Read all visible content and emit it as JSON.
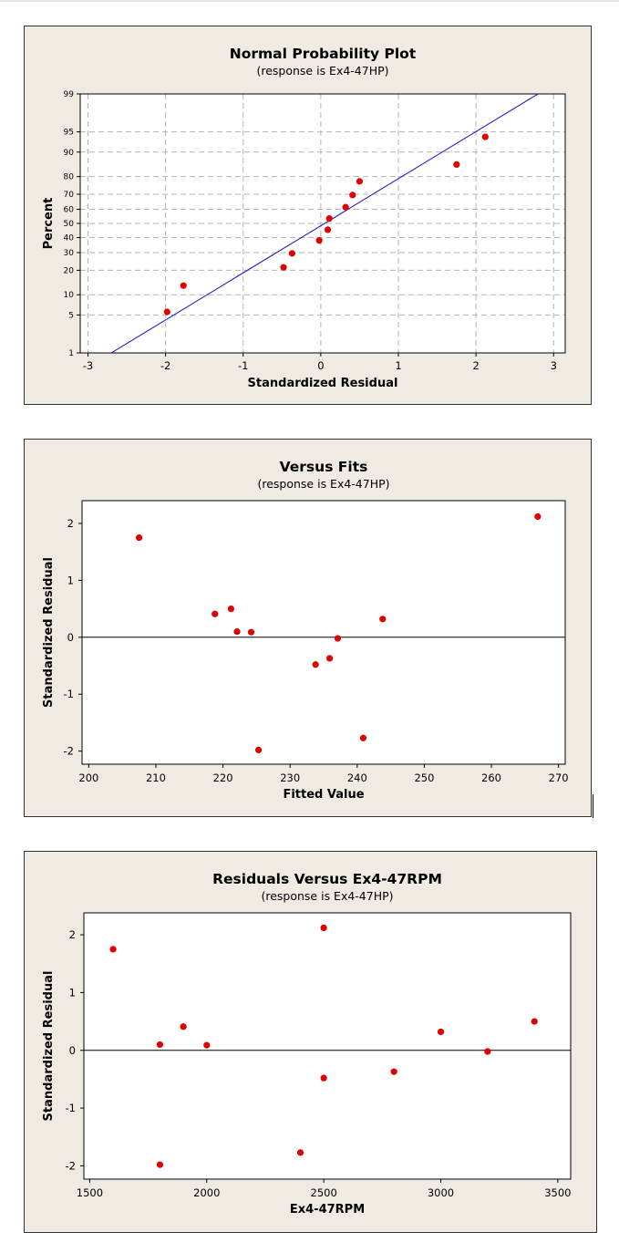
{
  "chart_data": [
    {
      "type": "scatter",
      "title": "Normal Probability Plot",
      "subtitle": "(response is Ex4-47HP)",
      "xlabel": "Standardized Residual",
      "ylabel": "Percent",
      "xlim": [
        -3.1,
        3.15
      ],
      "x_ticks": [
        -3,
        -2,
        -1,
        0,
        1,
        2,
        3
      ],
      "y_ticks": [
        1,
        5,
        10,
        20,
        30,
        40,
        50,
        60,
        70,
        80,
        90,
        95,
        99
      ],
      "y_scale": "normal probability",
      "grid": true,
      "fit_line": {
        "x": [
          -2.7,
          2.8
        ],
        "y": [
          1.0,
          99.0
        ]
      },
      "points": [
        {
          "x": -1.98,
          "y": 5.6
        },
        {
          "x": -1.77,
          "y": 13.2
        },
        {
          "x": -0.48,
          "y": 21.5
        },
        {
          "x": -0.37,
          "y": 29.5
        },
        {
          "x": -0.02,
          "y": 38.0
        },
        {
          "x": 0.09,
          "y": 45.5
        },
        {
          "x": 0.11,
          "y": 53.5
        },
        {
          "x": 0.32,
          "y": 61.5
        },
        {
          "x": 0.41,
          "y": 69.5
        },
        {
          "x": 0.5,
          "y": 77.5
        },
        {
          "x": 1.75,
          "y": 85.5
        },
        {
          "x": 2.12,
          "y": 94.0
        }
      ]
    },
    {
      "type": "scatter",
      "title": "Versus Fits",
      "subtitle": "(response is Ex4-47HP)",
      "xlabel": "Fitted Value",
      "ylabel": "Standardized Residual",
      "xlim": [
        199,
        271
      ],
      "ylim": [
        -2.23,
        2.4
      ],
      "x_ticks": [
        200,
        210,
        220,
        230,
        240,
        250,
        260,
        270
      ],
      "y_ticks": [
        -2,
        -1,
        0,
        1,
        2
      ],
      "reference_line": 0,
      "points": [
        {
          "x": 207.5,
          "y": 1.75
        },
        {
          "x": 218.8,
          "y": 0.41
        },
        {
          "x": 221.2,
          "y": 0.5
        },
        {
          "x": 222.1,
          "y": 0.1
        },
        {
          "x": 224.2,
          "y": 0.09
        },
        {
          "x": 225.3,
          "y": -1.98
        },
        {
          "x": 233.8,
          "y": -0.48
        },
        {
          "x": 235.9,
          "y": -0.37
        },
        {
          "x": 237.1,
          "y": -0.02
        },
        {
          "x": 240.9,
          "y": -1.77
        },
        {
          "x": 243.8,
          "y": 0.32
        },
        {
          "x": 266.9,
          "y": 2.12
        }
      ]
    },
    {
      "type": "scatter",
      "title": "Residuals Versus Ex4-47RPM",
      "subtitle": "(response is Ex4-47HP)",
      "xlabel": "Ex4-47RPM",
      "ylabel": "Standardized Residual",
      "xlim": [
        1475,
        3555
      ],
      "ylim": [
        -2.23,
        2.38
      ],
      "x_ticks": [
        1500,
        2000,
        2500,
        3000,
        3500
      ],
      "y_ticks": [
        -2,
        -1,
        0,
        1,
        2
      ],
      "reference_line": 0,
      "points": [
        {
          "x": 1600,
          "y": 1.75
        },
        {
          "x": 1800,
          "y": 0.1
        },
        {
          "x": 1800,
          "y": -1.98
        },
        {
          "x": 1900,
          "y": 0.41
        },
        {
          "x": 2000,
          "y": 0.09
        },
        {
          "x": 2400,
          "y": -1.77
        },
        {
          "x": 2500,
          "y": 2.12
        },
        {
          "x": 2500,
          "y": -0.48
        },
        {
          "x": 2800,
          "y": -0.37
        },
        {
          "x": 3000,
          "y": 0.32
        },
        {
          "x": 3200,
          "y": -0.02
        },
        {
          "x": 3400,
          "y": 0.5
        }
      ]
    }
  ],
  "colors": {
    "panel_bg": "#efebe2",
    "plot_bg": "#ffffff",
    "point": "#e00000",
    "fit_line": "#2323c8",
    "grid": "#b4b4b4"
  }
}
